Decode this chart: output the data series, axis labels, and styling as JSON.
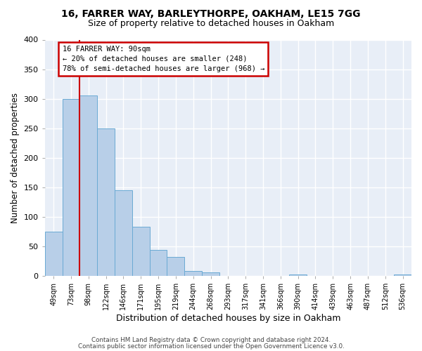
{
  "title1": "16, FARRER WAY, BARLEYTHORPE, OAKHAM, LE15 7GG",
  "title2": "Size of property relative to detached houses in Oakham",
  "xlabel": "Distribution of detached houses by size in Oakham",
  "ylabel": "Number of detached properties",
  "categories": [
    "49sqm",
    "73sqm",
    "98sqm",
    "122sqm",
    "146sqm",
    "171sqm",
    "195sqm",
    "219sqm",
    "244sqm",
    "268sqm",
    "293sqm",
    "317sqm",
    "341sqm",
    "366sqm",
    "390sqm",
    "414sqm",
    "439sqm",
    "463sqm",
    "487sqm",
    "512sqm",
    "536sqm"
  ],
  "values": [
    75,
    300,
    305,
    250,
    145,
    83,
    44,
    32,
    8,
    6,
    0,
    0,
    0,
    0,
    2,
    0,
    0,
    0,
    0,
    0,
    2
  ],
  "bar_color": "#b8cfe8",
  "bar_edge_color": "#6aaad4",
  "vline_x_index": 2,
  "vline_color": "#cc0000",
  "ylim": [
    0,
    400
  ],
  "yticks": [
    0,
    50,
    100,
    150,
    200,
    250,
    300,
    350,
    400
  ],
  "annotation_title": "16 FARRER WAY: 90sqm",
  "annotation_line1": "← 20% of detached houses are smaller (248)",
  "annotation_line2": "78% of semi-detached houses are larger (968) →",
  "annotation_box_facecolor": "#ffffff",
  "annotation_box_edgecolor": "#cc0000",
  "footer1": "Contains HM Land Registry data © Crown copyright and database right 2024.",
  "footer2": "Contains public sector information licensed under the Open Government Licence v3.0.",
  "fig_facecolor": "#ffffff",
  "axes_facecolor": "#e8eef7",
  "grid_color": "#ffffff",
  "title1_fontsize": 10,
  "title2_fontsize": 9,
  "xlabel_fontsize": 9,
  "ylabel_fontsize": 8.5
}
